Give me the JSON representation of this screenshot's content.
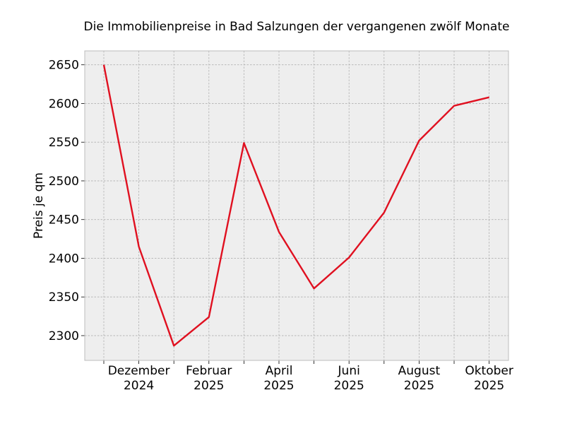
{
  "chart_data": {
    "type": "line",
    "title": "Die Immobilienpreise in Bad Salzungen der vergangenen zwölf Monate",
    "xlabel": "",
    "ylabel": "Preis je qm",
    "x": [
      "2024-11",
      "2024-12",
      "2025-01",
      "2025-02",
      "2025-03",
      "2025-04",
      "2025-05",
      "2025-06",
      "2025-07",
      "2025-08",
      "2025-09",
      "2025-10"
    ],
    "series": [
      {
        "values": [
          2650,
          2415,
          2287,
          2324,
          2549,
          2434,
          2361,
          2401,
          2459,
          2552,
          2597,
          2608
        ]
      }
    ],
    "x_tick_labels": [
      {
        "x": "2024-12",
        "month": "Dezember",
        "year": "2024"
      },
      {
        "x": "2025-02",
        "month": "Februar",
        "year": "2025"
      },
      {
        "x": "2025-04",
        "month": "April",
        "year": "2025"
      },
      {
        "x": "2025-06",
        "month": "Juni",
        "year": "2025"
      },
      {
        "x": "2025-08",
        "month": "August",
        "year": "2025"
      },
      {
        "x": "2025-10",
        "month": "Oktober",
        "year": "2025"
      }
    ],
    "y_ticks": [
      2300,
      2350,
      2400,
      2450,
      2500,
      2550,
      2600,
      2650
    ],
    "ylim": [
      2268,
      2668
    ],
    "grid": true,
    "colors": {
      "line": "#e01020",
      "background": "#eeeeee",
      "grid": "#b0b0b0",
      "frame": "#bcbcbc"
    }
  }
}
